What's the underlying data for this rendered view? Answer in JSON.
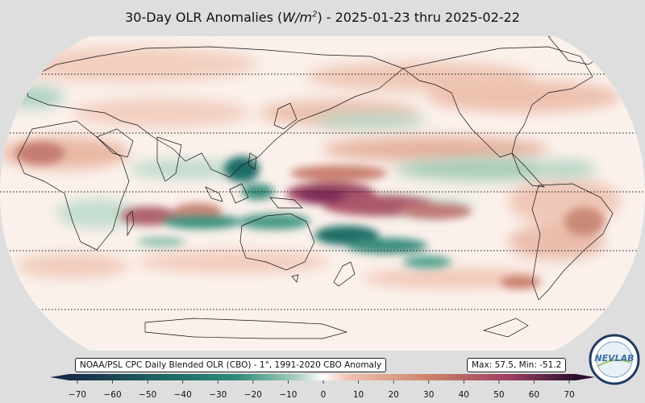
{
  "title": {
    "prefix": "30-Day OLR Anomalies (",
    "unit_base": "W/m",
    "unit_exp": "2",
    "suffix": ") - 2025-01-23 thru 2025-02-22"
  },
  "source_label": "NOAA/PSL CPC Daily Blended OLR (CBO) - 1°, 1991-2020 CBO Anomaly",
  "stats_label": "Max: 57.5,  Min: -51.2",
  "logo_text": "NEVLAB",
  "colorbar": {
    "ticks": [
      -70,
      -60,
      -50,
      -40,
      -30,
      -20,
      -10,
      0,
      10,
      20,
      30,
      40,
      50,
      60,
      70
    ],
    "tick_labels": [
      "−70",
      "−60",
      "−50",
      "−40",
      "−30",
      "−20",
      "−10",
      "0",
      "10",
      "20",
      "30",
      "40",
      "50",
      "60",
      "70"
    ],
    "range": [
      -70,
      70
    ],
    "extend": "both",
    "colors": {
      "neg_extreme": "#1a2a45",
      "neg_strong": "#1f6a66",
      "neg_mid": "#2e8b7a",
      "neg_weak": "#a8d0bf",
      "zero": "#ffffff",
      "pos_weak": "#f0c2b0",
      "pos_mid": "#c97f66",
      "pos_strong": "#9c3e62",
      "pos_extreme": "#2a0f2f"
    }
  },
  "map": {
    "projection": "Robinson (Pacific-centered)",
    "central_longitude": 150,
    "gridlines": "dotted latitude lines every 30°",
    "anomaly_regions": [
      {
        "name": "central-pacific-positive",
        "lon": 170,
        "lat": -2,
        "value": 55
      },
      {
        "name": "south-pacific-negative",
        "lon": 180,
        "lat": -15,
        "value": -45
      },
      {
        "name": "maritime-continent-negative",
        "lon": 118,
        "lat": 8,
        "value": -40
      },
      {
        "name": "indian-ocean-positive",
        "lon": 60,
        "lat": -10,
        "value": 30
      },
      {
        "name": "pacific-westerly-positive",
        "lon": 200,
        "lat": 15,
        "value": 20
      },
      {
        "name": "east-pacific-negative",
        "lon": 235,
        "lat": 8,
        "value": -20
      },
      {
        "name": "south-america-positive",
        "lon": 300,
        "lat": -10,
        "value": 15
      }
    ]
  }
}
